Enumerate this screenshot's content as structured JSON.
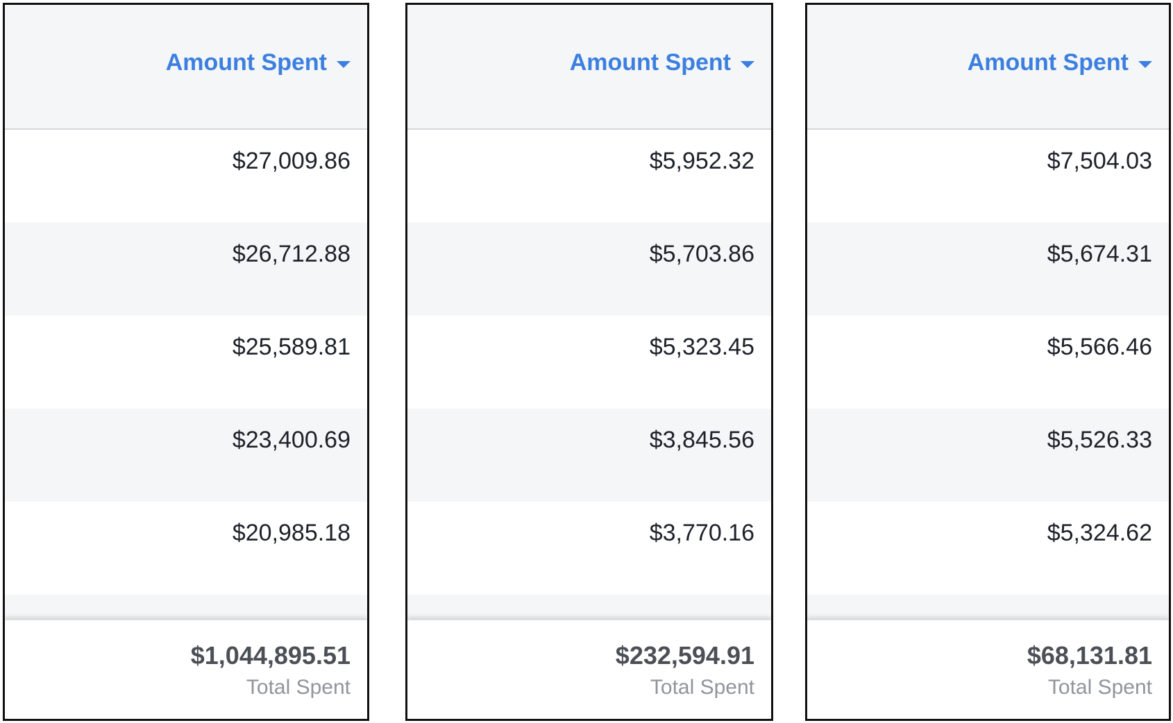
{
  "panels": [
    {
      "header": "Amount Spent",
      "rows": [
        "$27,009.86",
        "$26,712.88",
        "$25,589.81",
        "$23,400.69",
        "$20,985.18"
      ],
      "total": "$1,044,895.51",
      "total_label": "Total Spent"
    },
    {
      "header": "Amount Spent",
      "rows": [
        "$5,952.32",
        "$5,703.86",
        "$5,323.45",
        "$3,845.56",
        "$3,770.16"
      ],
      "total": "$232,594.91",
      "total_label": "Total Spent"
    },
    {
      "header": "Amount Spent",
      "rows": [
        "$7,504.03",
        "$5,674.31",
        "$5,566.46",
        "$5,526.33",
        "$5,324.62"
      ],
      "total": "$68,131.81",
      "total_label": "Total Spent"
    }
  ]
}
